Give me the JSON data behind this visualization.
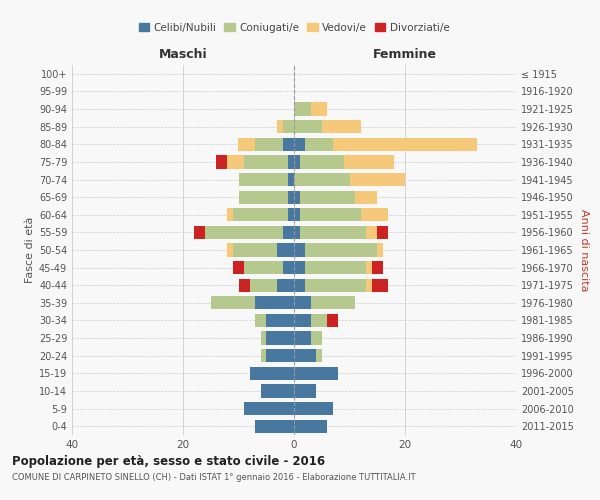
{
  "age_groups": [
    "100+",
    "95-99",
    "90-94",
    "85-89",
    "80-84",
    "75-79",
    "70-74",
    "65-69",
    "60-64",
    "55-59",
    "50-54",
    "45-49",
    "40-44",
    "35-39",
    "30-34",
    "25-29",
    "20-24",
    "15-19",
    "10-14",
    "5-9",
    "0-4"
  ],
  "birth_years": [
    "≤ 1915",
    "1916-1920",
    "1921-1925",
    "1926-1930",
    "1931-1935",
    "1936-1940",
    "1941-1945",
    "1946-1950",
    "1951-1955",
    "1956-1960",
    "1961-1965",
    "1966-1970",
    "1971-1975",
    "1976-1980",
    "1981-1985",
    "1986-1990",
    "1991-1995",
    "1996-2000",
    "2001-2005",
    "2006-2010",
    "2011-2015"
  ],
  "colors": {
    "celibi": "#4878a0",
    "coniugati": "#b5c98e",
    "vedovi": "#f5c87a",
    "divorziati": "#cc2222"
  },
  "maschi": {
    "celibi": [
      0,
      0,
      0,
      0,
      2,
      1,
      1,
      1,
      1,
      2,
      3,
      2,
      3,
      7,
      5,
      5,
      5,
      8,
      6,
      9,
      7
    ],
    "coniugati": [
      0,
      0,
      0,
      2,
      5,
      8,
      9,
      9,
      10,
      14,
      8,
      7,
      5,
      8,
      2,
      1,
      1,
      0,
      0,
      0,
      0
    ],
    "vedovi": [
      0,
      0,
      0,
      1,
      3,
      3,
      0,
      0,
      1,
      0,
      1,
      0,
      0,
      0,
      0,
      0,
      0,
      0,
      0,
      0,
      0
    ],
    "divorziati": [
      0,
      0,
      0,
      0,
      0,
      2,
      0,
      0,
      0,
      2,
      0,
      2,
      2,
      0,
      0,
      0,
      0,
      0,
      0,
      0,
      0
    ]
  },
  "femmine": {
    "nubili": [
      0,
      0,
      0,
      0,
      2,
      1,
      0,
      1,
      1,
      1,
      2,
      2,
      2,
      3,
      3,
      3,
      4,
      8,
      4,
      7,
      6
    ],
    "coniugate": [
      0,
      0,
      3,
      5,
      5,
      8,
      10,
      10,
      11,
      12,
      13,
      11,
      11,
      8,
      3,
      2,
      1,
      0,
      0,
      0,
      0
    ],
    "vedove": [
      0,
      0,
      3,
      7,
      26,
      9,
      10,
      4,
      5,
      2,
      1,
      1,
      1,
      0,
      0,
      0,
      0,
      0,
      0,
      0,
      0
    ],
    "divorziate": [
      0,
      0,
      0,
      0,
      0,
      0,
      0,
      0,
      0,
      2,
      0,
      2,
      3,
      0,
      2,
      0,
      0,
      0,
      0,
      0,
      0
    ]
  },
  "title": "Popolazione per età, sesso e stato civile - 2016",
  "subtitle": "COMUNE DI CARPINETO SINELLO (CH) - Dati ISTAT 1° gennaio 2016 - Elaborazione TUTTITALIA.IT",
  "xlabel_left": "Maschi",
  "xlabel_right": "Femmine",
  "ylabel_left": "Fasce di età",
  "ylabel_right": "Anni di nascita",
  "xlim": 40,
  "legend_labels": [
    "Celibi/Nubili",
    "Coniugati/e",
    "Vedovi/e",
    "Divorziati/e"
  ],
  "bg_color": "#f8f8f8",
  "bar_height": 0.75
}
